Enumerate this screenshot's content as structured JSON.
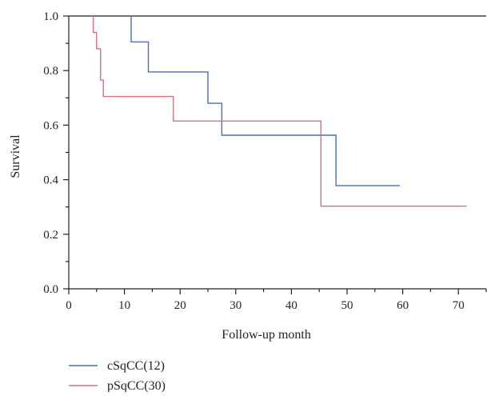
{
  "chart_data": {
    "type": "line",
    "step": true,
    "xlabel": "Follow-up month",
    "ylabel": "Survival",
    "xlim": [
      0,
      75
    ],
    "ylim": [
      0,
      1.0
    ],
    "xticks": [
      0,
      10,
      20,
      30,
      40,
      50,
      60,
      70
    ],
    "yticks": [
      0.0,
      0.2,
      0.4,
      0.6,
      0.8,
      1.0
    ],
    "ytick_labels": [
      "0.0",
      "0.2",
      "0.4",
      "0.6",
      "0.8",
      "1.0"
    ],
    "grid": false,
    "legend": "bottom-left",
    "series": [
      {
        "name": "cSqCC(12)",
        "color": "#4a6fb5",
        "points": [
          [
            11.2,
            1.0
          ],
          [
            11.2,
            0.905
          ],
          [
            14.3,
            0.905
          ],
          [
            14.3,
            0.795
          ],
          [
            25.0,
            0.795
          ],
          [
            25.0,
            0.68
          ],
          [
            27.5,
            0.68
          ],
          [
            27.5,
            0.563
          ],
          [
            48.0,
            0.563
          ],
          [
            48.0,
            0.378
          ],
          [
            59.5,
            0.378
          ]
        ]
      },
      {
        "name": "pSqCC(30)",
        "color": "#d9707c",
        "points": [
          [
            4.4,
            1.0
          ],
          [
            4.4,
            0.94
          ],
          [
            5.0,
            0.94
          ],
          [
            5.0,
            0.88
          ],
          [
            5.7,
            0.88
          ],
          [
            5.7,
            0.765
          ],
          [
            6.2,
            0.765
          ],
          [
            6.2,
            0.705
          ],
          [
            18.8,
            0.705
          ],
          [
            18.8,
            0.615
          ],
          [
            45.3,
            0.615
          ],
          [
            45.3,
            0.303
          ],
          [
            71.5,
            0.303
          ]
        ]
      }
    ]
  }
}
